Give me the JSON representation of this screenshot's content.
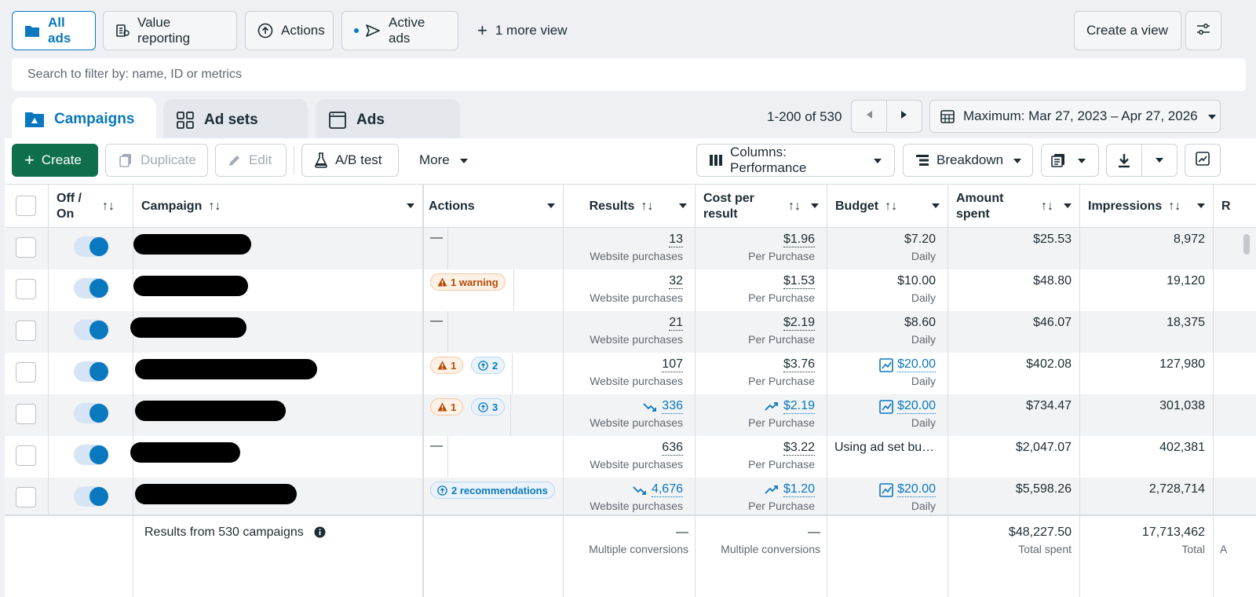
{
  "views": {
    "all_ads": "All ads",
    "value_reporting": "Value reporting",
    "actions": "Actions",
    "active_ads": "Active ads",
    "more_view": "1 more view",
    "create_view": "Create a view"
  },
  "search": {
    "placeholder": "Search to filter by: name, ID or metrics"
  },
  "level_tabs": {
    "campaigns": "Campaigns",
    "ad_sets": "Ad sets",
    "ads": "Ads"
  },
  "pagination": {
    "range": "1-200 of 530"
  },
  "date_range": "Maximum: Mar 27, 2023 – Apr 27, 2026",
  "toolbar": {
    "create": "Create",
    "duplicate": "Duplicate",
    "edit": "Edit",
    "ab_test": "A/B test",
    "more": "More",
    "columns": "Columns: Performance",
    "breakdown": "Breakdown"
  },
  "columns": {
    "off_on": "Off / On",
    "campaign": "Campaign",
    "actions": "Actions",
    "results": "Results",
    "cost_per_result": "Cost per result",
    "budget": "Budget",
    "amount_spent": "Amount spent",
    "impressions": "Impressions",
    "next": "R"
  },
  "rows": [
    {
      "results": "13",
      "results_sub": "Website purchases",
      "cost": "$1.96",
      "cost_sub": "Per Purchase",
      "budget": "$7.20",
      "budget_sub": "Daily",
      "spent": "$25.53",
      "impressions": "8,972"
    },
    {
      "warning": "1 warning",
      "results": "32",
      "results_sub": "Website purchases",
      "cost": "$1.53",
      "cost_sub": "Per Purchase",
      "budget": "$10.00",
      "budget_sub": "Daily",
      "spent": "$48.80",
      "impressions": "19,120"
    },
    {
      "results": "21",
      "results_sub": "Website purchases",
      "cost": "$2.19",
      "cost_sub": "Per Purchase",
      "budget": "$8.60",
      "budget_sub": "Daily",
      "spent": "$46.07",
      "impressions": "18,375"
    },
    {
      "warn_count": "1",
      "rec_count": "2",
      "results": "107",
      "results_sub": "Website purchases",
      "cost": "$3.76",
      "cost_sub": "Per Purchase",
      "budget": "$20.00",
      "budget_sub": "Daily",
      "spent": "$402.08",
      "impressions": "127,980"
    },
    {
      "warn_count": "1",
      "rec_count": "3",
      "results": "336",
      "results_sub": "Website purchases",
      "cost": "$2.19",
      "cost_sub": "Per Purchase",
      "budget": "$20.00",
      "budget_sub": "Daily",
      "spent": "$734.47",
      "impressions": "301,038"
    },
    {
      "results": "636",
      "results_sub": "Website purchases",
      "cost": "$3.22",
      "cost_sub": "Per Purchase",
      "budget": "Using ad set bu…",
      "spent": "$2,047.07",
      "impressions": "402,381"
    },
    {
      "recommendations": "2 recommendations",
      "results": "4,676",
      "results_sub": "Website purchases",
      "cost": "$1.20",
      "cost_sub": "Per Purchase",
      "budget": "$20.00",
      "budget_sub": "Daily",
      "spent": "$5,598.26",
      "impressions": "2,728,714"
    }
  ],
  "dash": "—",
  "totals": {
    "label": "Results from 530 campaigns",
    "results": "—",
    "results_sub": "Multiple conversions",
    "cost": "—",
    "cost_sub": "Multiple conversions",
    "spent": "$48,227.50",
    "spent_sub": "Total spent",
    "impressions": "17,713,462",
    "impressions_sub": "Total",
    "next_sub": "A"
  },
  "colors": {
    "accent": "#0a78be",
    "create_green": "#0f6f4b",
    "warning": "#b34c08"
  }
}
